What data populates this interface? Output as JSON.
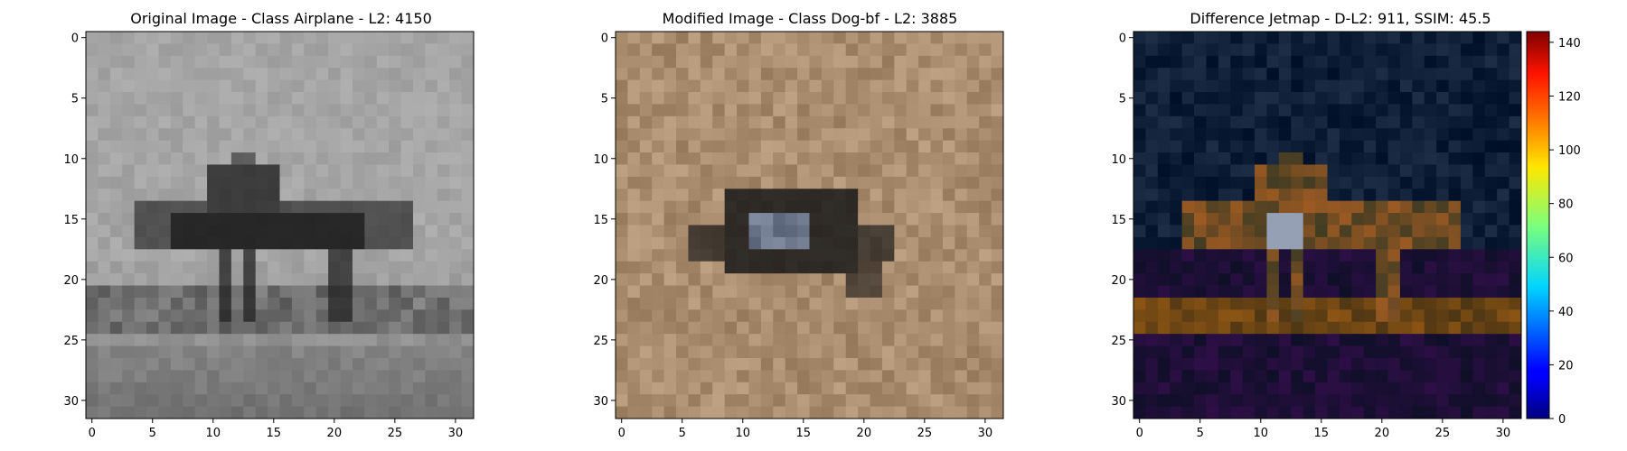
{
  "panels": [
    {
      "id": "original",
      "title": "Original Image - Class Airplane - L2: 4150",
      "title_color": "#000000",
      "palette": "gray"
    },
    {
      "id": "modified",
      "title": "Modified Image - Class Dog-bf - L2: 3885",
      "title_color": "#ff0000",
      "palette": "tan"
    },
    {
      "id": "difference",
      "title": "Difference Jetmap - D-L2: 911, SSIM: 45.5",
      "title_color": "#000000",
      "palette": "jet"
    }
  ],
  "axes": {
    "x_ticks": [
      0,
      5,
      10,
      15,
      20,
      25,
      30
    ],
    "y_ticks": [
      0,
      5,
      10,
      15,
      20,
      25,
      30
    ],
    "range": [
      -0.5,
      31.5
    ]
  },
  "colorbar": {
    "ticks": [
      0,
      20,
      40,
      60,
      80,
      100,
      120,
      140
    ],
    "range": [
      0,
      144
    ]
  }
}
